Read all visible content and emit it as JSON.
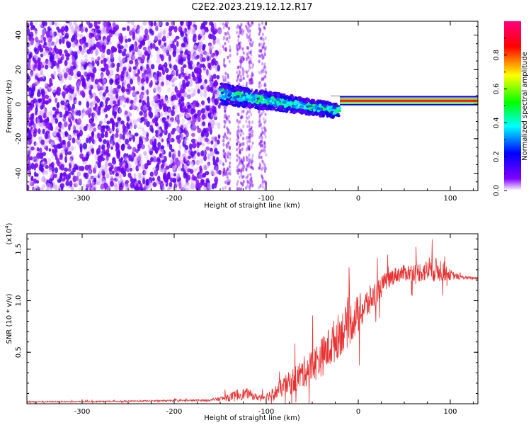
{
  "figure": {
    "title": "C2E2.2023.219.12.12.R17"
  },
  "chart_data": [
    {
      "type": "heatmap",
      "title": "",
      "xlabel": "Height of straight line (km)",
      "ylabel": "Frequency (Hz)",
      "xlim": [
        -360,
        130
      ],
      "ylim": [
        -50,
        48
      ],
      "x_ticks": [
        -300,
        -200,
        -100,
        0,
        100
      ],
      "y_ticks": [
        -40,
        -20,
        0,
        20,
        40
      ],
      "x_tick_labels": [
        "-300",
        "-200",
        "-100",
        "0",
        "100"
      ],
      "y_tick_labels": [
        "-40",
        "-20",
        "0",
        "20",
        "40"
      ],
      "colorbar": {
        "label": "Normalized spectral amplitude",
        "range": [
          0,
          1
        ],
        "ticks": [
          "0.0",
          "0.2",
          "0.4",
          "0.6",
          "0.8"
        ],
        "colormap": [
          "#ffffff",
          "#8000ff",
          "#0000ff",
          "#00ffff",
          "#00ff00",
          "#ffff00",
          "#ff0000",
          "#ff0080"
        ]
      },
      "regions": [
        {
          "x_range": [
            -360,
            -150
          ],
          "freq_range": [
            -50,
            48
          ],
          "amplitude": 0.08,
          "pattern": "broadband speckle"
        },
        {
          "x_range": [
            -150,
            -90
          ],
          "freq_range": [
            -50,
            48
          ],
          "amplitude": 0.05,
          "pattern": "sparse vertical bands"
        },
        {
          "x_range": [
            -150,
            -20
          ],
          "freq_center": [
            6,
            -4
          ],
          "amplitude": 0.35,
          "pattern": "descending band"
        },
        {
          "x_range": [
            -20,
            130
          ],
          "freq_center": 2,
          "amplitude": 0.95,
          "pattern": "narrow constant band"
        }
      ]
    },
    {
      "type": "line",
      "title": "",
      "xlabel": "Height of straight line (km)",
      "ylabel": "SNR (10 * v/v)",
      "y_scale_label": "(x10",
      "y_scale_exp": "4",
      "xlim": [
        -360,
        130
      ],
      "ylim": [
        0,
        16500
      ],
      "x_ticks": [
        -300,
        -200,
        -100,
        0,
        100
      ],
      "y_ticks": [
        5000,
        10000,
        15000
      ],
      "x_tick_labels": [
        "-300",
        "-200",
        "-100",
        "0",
        "100"
      ],
      "y_tick_labels": [
        "0.5",
        "1.0",
        "1.5"
      ],
      "series": [
        {
          "color": "#e83030",
          "x": [
            -360,
            -300,
            -250,
            -200,
            -160,
            -140,
            -130,
            -120,
            -110,
            -100,
            -90,
            -80,
            -70,
            -60,
            -50,
            -40,
            -30,
            -20,
            -10,
            0,
            10,
            20,
            30,
            40,
            50,
            60,
            70,
            80,
            90,
            100,
            110,
            120,
            130
          ],
          "y": [
            200,
            200,
            250,
            300,
            350,
            600,
            900,
            1000,
            600,
            700,
            1100,
            1700,
            2300,
            3000,
            3700,
            4500,
            5600,
            6800,
            7700,
            8700,
            9700,
            10800,
            11900,
            12500,
            12700,
            12800,
            12800,
            13000,
            13000,
            12500,
            12300,
            12200,
            12200
          ],
          "noise": [
            60,
            60,
            60,
            80,
            100,
            350,
            600,
            500,
            300,
            400,
            700,
            1000,
            1300,
            1500,
            1700,
            1900,
            2100,
            2200,
            2100,
            1900,
            1600,
            1200,
            900,
            800,
            800,
            900,
            1000,
            1200,
            1200,
            500,
            200,
            150,
            150
          ]
        }
      ]
    }
  ]
}
